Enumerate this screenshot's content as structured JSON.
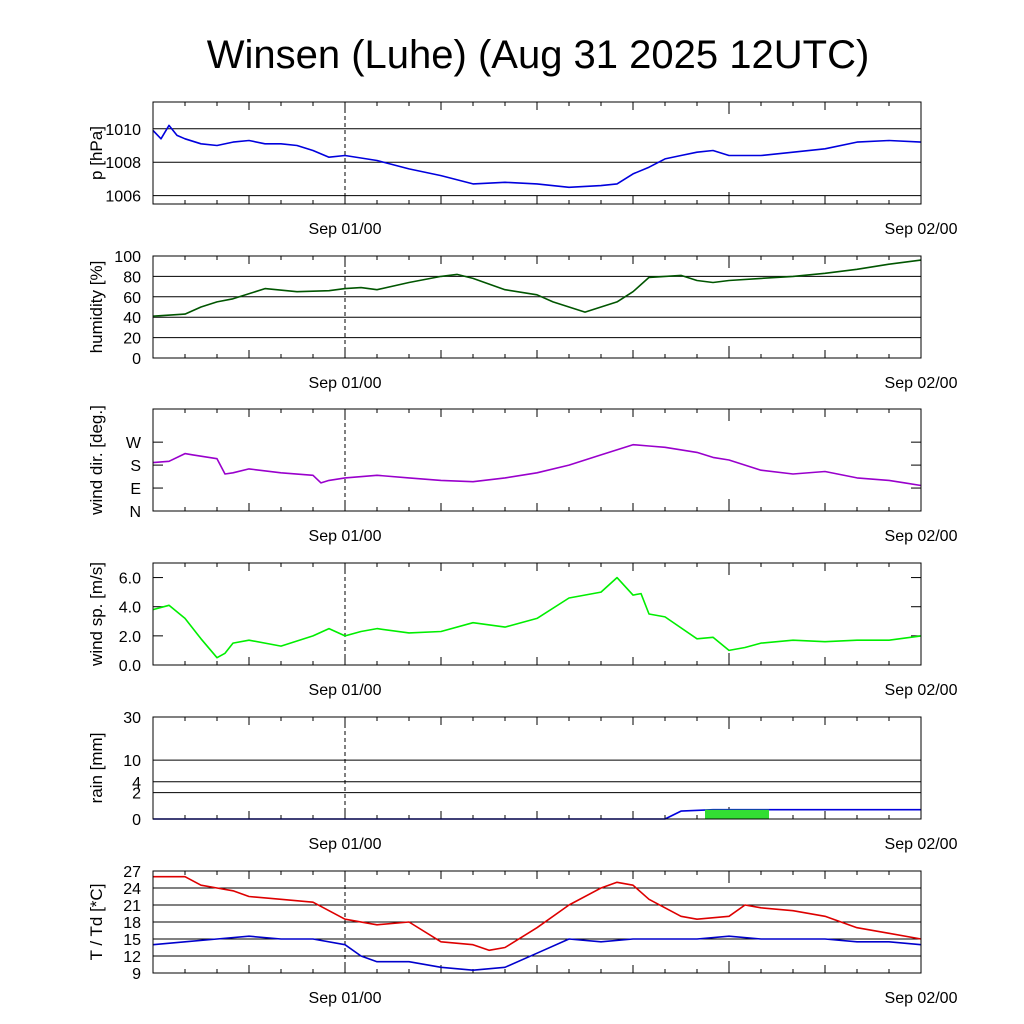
{
  "title": "Winsen (Luhe) (Aug 31 2025 12UTC)",
  "x_tick_labels": [
    "Sep 01/00",
    "Sep 02/00"
  ],
  "colors": {
    "pressure": "#0000dd",
    "humidity": "#005500",
    "wind_dir": "#9900cc",
    "wind_speed": "#00ee00",
    "rain_line": "#0000dd",
    "rain_bar": "#33dd33",
    "temperature": "#dd0000",
    "dewpoint": "#0000cc"
  },
  "chart_data": [
    {
      "type": "line",
      "ylabel": "p [hPa]",
      "ylim": [
        1005.5,
        1011.6
      ],
      "ytick_values": [
        1006,
        1008,
        1010
      ],
      "ytick_labels": [
        "1006",
        "1008",
        "1010"
      ],
      "grid": true,
      "series": [
        {
          "color_key": "pressure",
          "x": [
            0,
            0.5,
            1,
            1.5,
            2,
            3,
            4,
            5,
            6,
            7,
            8,
            9,
            10,
            11,
            12,
            14,
            16,
            18,
            20,
            22,
            24,
            26,
            28,
            29,
            30,
            31,
            32,
            33,
            34,
            35,
            36,
            38,
            40,
            42,
            44,
            46,
            48
          ],
          "y": [
            1009.9,
            1009.4,
            1010.2,
            1009.6,
            1009.4,
            1009.1,
            1009.0,
            1009.2,
            1009.3,
            1009.1,
            1009.1,
            1009.0,
            1008.7,
            1008.3,
            1008.4,
            1008.1,
            1007.6,
            1007.2,
            1006.7,
            1006.8,
            1006.7,
            1006.5,
            1006.6,
            1006.7,
            1007.3,
            1007.7,
            1008.2,
            1008.4,
            1008.6,
            1008.7,
            1008.4,
            1008.4,
            1008.6,
            1008.8,
            1009.2,
            1009.3,
            1009.2
          ]
        }
      ]
    },
    {
      "type": "line",
      "ylabel": "humidity [%]",
      "ylim": [
        0,
        100
      ],
      "ytick_values": [
        0,
        20,
        40,
        60,
        80,
        100
      ],
      "ytick_labels": [
        "0",
        "20",
        "40",
        "60",
        "80",
        "100"
      ],
      "grid": true,
      "series": [
        {
          "color_key": "humidity",
          "x": [
            0,
            2,
            3,
            4,
            5,
            7,
            9,
            11,
            12,
            13,
            14,
            16,
            18,
            19,
            20,
            22,
            24,
            25,
            27,
            29,
            30,
            31,
            32,
            33,
            34,
            35,
            36,
            38,
            40,
            42,
            44,
            46,
            48
          ],
          "y": [
            41,
            43,
            50,
            55,
            58,
            68,
            65,
            66,
            68,
            69,
            67,
            74,
            80,
            82,
            78,
            67,
            62,
            55,
            45,
            55,
            65,
            79,
            80,
            81,
            76,
            74,
            76,
            78,
            80,
            83,
            87,
            92,
            96
          ]
        }
      ]
    },
    {
      "type": "line",
      "ylabel": "wind dir. [deg.]",
      "ylim": [
        0,
        400
      ],
      "ytick_values": [
        0,
        90,
        180,
        270
      ],
      "ytick_labels": [
        "N",
        "E",
        "S",
        "W"
      ],
      "grid": false,
      "series": [
        {
          "color_key": "wind_dir",
          "x": [
            0,
            1,
            2,
            2.5,
            3,
            4,
            4.5,
            5,
            6,
            8,
            10,
            10.5,
            11,
            12,
            14,
            16,
            18,
            20,
            22,
            24,
            26,
            28,
            30,
            31,
            32,
            34,
            35,
            36,
            38,
            40,
            42,
            44,
            46,
            47,
            48
          ],
          "y": [
            190,
            195,
            225,
            220,
            215,
            205,
            145,
            150,
            165,
            150,
            140,
            110,
            120,
            130,
            140,
            130,
            120,
            115,
            130,
            150,
            180,
            220,
            260,
            255,
            250,
            230,
            210,
            200,
            160,
            145,
            155,
            130,
            120,
            110,
            100
          ]
        }
      ]
    },
    {
      "type": "line",
      "ylabel": "wind sp. [m/s]",
      "ylim": [
        0,
        7
      ],
      "ytick_values": [
        0,
        2,
        4,
        6
      ],
      "ytick_labels": [
        "0.0",
        "2.0",
        "4.0",
        "6.0"
      ],
      "grid": false,
      "series": [
        {
          "color_key": "wind_speed",
          "x": [
            0,
            1,
            2,
            3,
            4,
            4.5,
            5,
            6,
            8,
            10,
            11,
            12,
            13,
            14,
            16,
            18,
            20,
            22,
            24,
            26,
            28,
            29,
            30,
            30.5,
            31,
            32,
            34,
            35,
            36,
            37,
            38,
            40,
            42,
            44,
            46,
            48
          ],
          "y": [
            3.8,
            4.1,
            3.2,
            1.8,
            0.5,
            0.8,
            1.5,
            1.7,
            1.3,
            2.0,
            2.5,
            2.0,
            2.3,
            2.5,
            2.2,
            2.3,
            2.9,
            2.6,
            3.2,
            4.6,
            5.0,
            6.0,
            4.8,
            4.9,
            3.5,
            3.3,
            1.8,
            1.9,
            1.0,
            1.2,
            1.5,
            1.7,
            1.6,
            1.7,
            1.7,
            2.0
          ]
        }
      ]
    },
    {
      "type": "area",
      "ylabel": "rain [mm]",
      "ylim": [
        0,
        30
      ],
      "scale": "sqrt",
      "ytick_values": [
        0,
        2,
        4,
        10,
        30
      ],
      "ytick_labels": [
        "0",
        "2",
        "4",
        "10",
        "30"
      ],
      "grid": true,
      "series": [
        {
          "color_key": "rain_line",
          "x": [
            0,
            32,
            33,
            35,
            48
          ],
          "y": [
            0,
            0,
            0.18,
            0.25,
            0.25
          ]
        },
        {
          "color_key": "rain_bar",
          "x_start": 34.5,
          "x_end": 38.5,
          "value": 0.25
        }
      ]
    },
    {
      "type": "line",
      "ylabel": "T / Td [*C]",
      "ylim": [
        9,
        27
      ],
      "ytick_values": [
        9,
        12,
        15,
        18,
        21,
        24,
        27
      ],
      "ytick_labels": [
        "9",
        "12",
        "15",
        "18",
        "21",
        "24",
        "27"
      ],
      "grid": true,
      "series": [
        {
          "color_key": "temperature",
          "x": [
            0,
            2,
            3,
            4,
            5,
            6,
            8,
            10,
            12,
            14,
            16,
            18,
            20,
            21,
            22,
            24,
            26,
            28,
            29,
            30,
            31,
            33,
            34,
            36,
            37,
            38,
            40,
            42,
            44,
            46,
            48
          ],
          "y": [
            26,
            26,
            24.5,
            24,
            23.5,
            22.5,
            22,
            21.5,
            18.5,
            17.5,
            18,
            14.5,
            14,
            13,
            13.5,
            17,
            21,
            24,
            25,
            24.5,
            22,
            19,
            18.5,
            19,
            21,
            20.5,
            20,
            19,
            17,
            16,
            15
          ]
        },
        {
          "color_key": "dewpoint",
          "x": [
            0,
            2,
            4,
            6,
            8,
            10,
            12,
            13,
            14,
            16,
            18,
            20,
            22,
            24,
            26,
            28,
            30,
            32,
            34,
            36,
            38,
            40,
            42,
            44,
            46,
            48
          ],
          "y": [
            14,
            14.5,
            15,
            15.5,
            15,
            15,
            14,
            12,
            11,
            11,
            10,
            9.5,
            10,
            12.5,
            15,
            14.5,
            15,
            15,
            15,
            15.5,
            15,
            15,
            15,
            14.5,
            14.5,
            14
          ]
        }
      ]
    }
  ]
}
